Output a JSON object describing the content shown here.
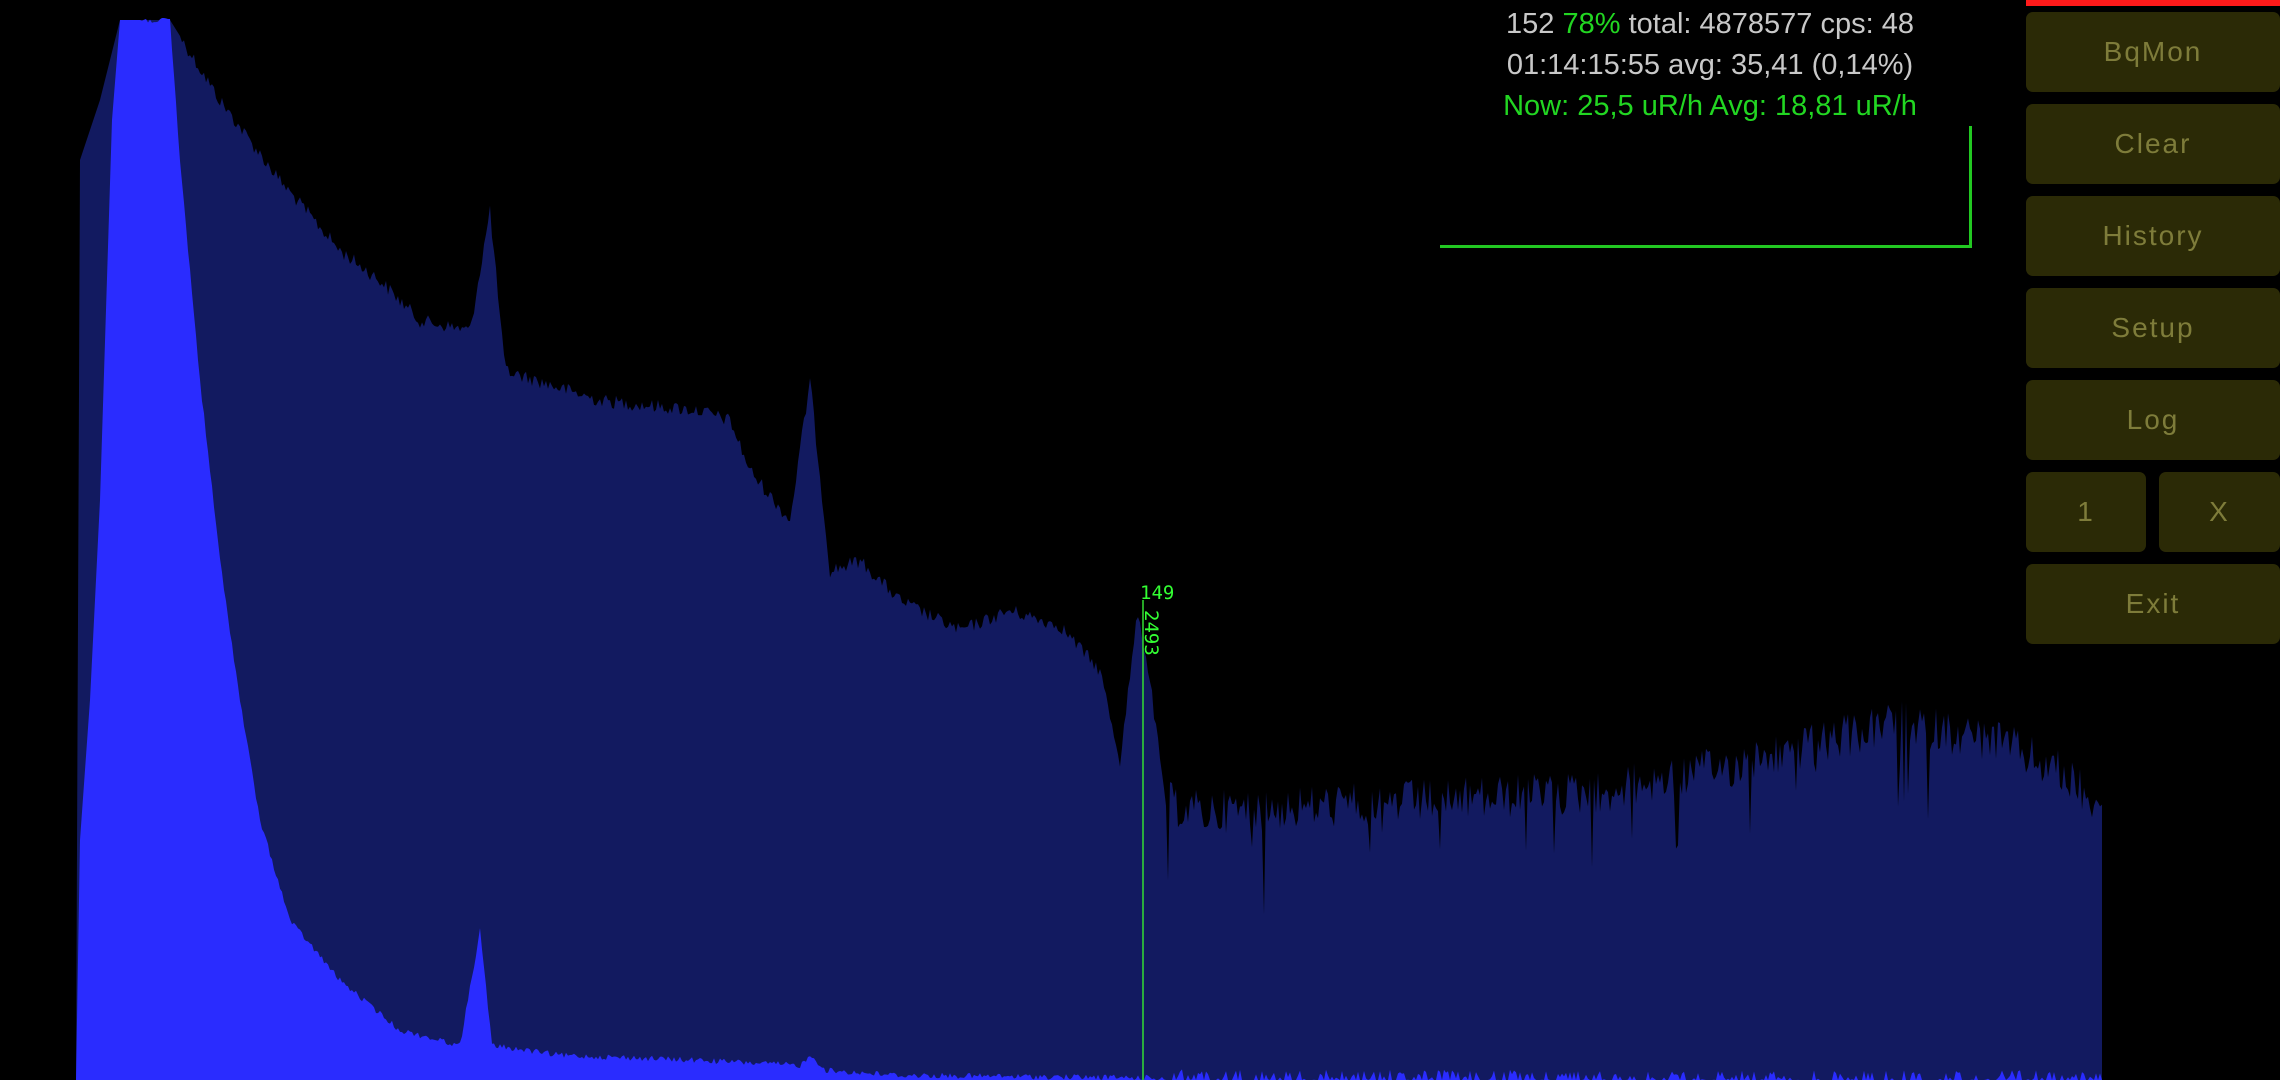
{
  "status": {
    "line1": {
      "count": "152",
      "percent": "78%",
      "rest": "total: 4878577 cps: 48"
    },
    "line2": "01:14:15:55 avg: 35,41 (0,14%)",
    "line3": "Now: 25,5 uR/h Avg: 18,81 uR/h"
  },
  "buttons": {
    "bqmon": "BqMon",
    "clear": "Clear",
    "history": "History",
    "setup": "Setup",
    "log": "Log",
    "one": "1",
    "x": "X",
    "exit": "Exit"
  },
  "marker": {
    "channel": "149",
    "count": "2493"
  },
  "colors": {
    "background": "#000000",
    "spectrum_dark": "#121a60",
    "spectrum_bright": "#2a2cff",
    "accent_green": "#22d622",
    "button_bg": "#2b2a06",
    "button_text": "#7e7c3a",
    "indicator_red": "#ff1a1a"
  }
}
